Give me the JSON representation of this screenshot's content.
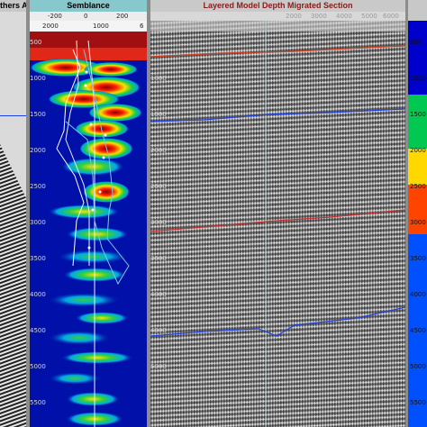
{
  "left_panel": {
    "title": "thers A"
  },
  "semblance_panel": {
    "title": "Semblance",
    "top_scale": [
      "-200",
      "0",
      "200"
    ],
    "sub_scale": [
      "2000",
      "1000",
      "6"
    ],
    "depth_ticks": [
      "500",
      "1000",
      "1500",
      "2000",
      "2500",
      "3000",
      "3500",
      "4000",
      "4500",
      "5000",
      "5500"
    ]
  },
  "section_panel": {
    "title": "Layered Model Depth Migrated Section",
    "top_labels": [
      "2000",
      "3000",
      "4000",
      "5000",
      "6000"
    ],
    "depth_ticks": [
      "1000",
      "1500",
      "2000",
      "2500",
      "3000",
      "3500",
      "4000",
      "4500",
      "5000"
    ]
  },
  "velocity_panel": {
    "depth_ticks": [
      "500",
      "1000",
      "1500",
      "2000",
      "2500",
      "3000",
      "3500",
      "4000",
      "4500",
      "5000",
      "5500"
    ],
    "colors": [
      "#0000cc",
      "#00c850",
      "#ffd800",
      "#ff4400",
      "#0050ff"
    ]
  },
  "colors": {
    "title_bg_left": "#c8c8c8",
    "title_bg_semb": "#86c8cc",
    "title_bg_section": "#c9c9c9",
    "title_text_section": "#8a1a1a",
    "horizon_red": "#d04020",
    "horizon_blue": "#2040e0",
    "semblance_bg": "#0010a8"
  }
}
